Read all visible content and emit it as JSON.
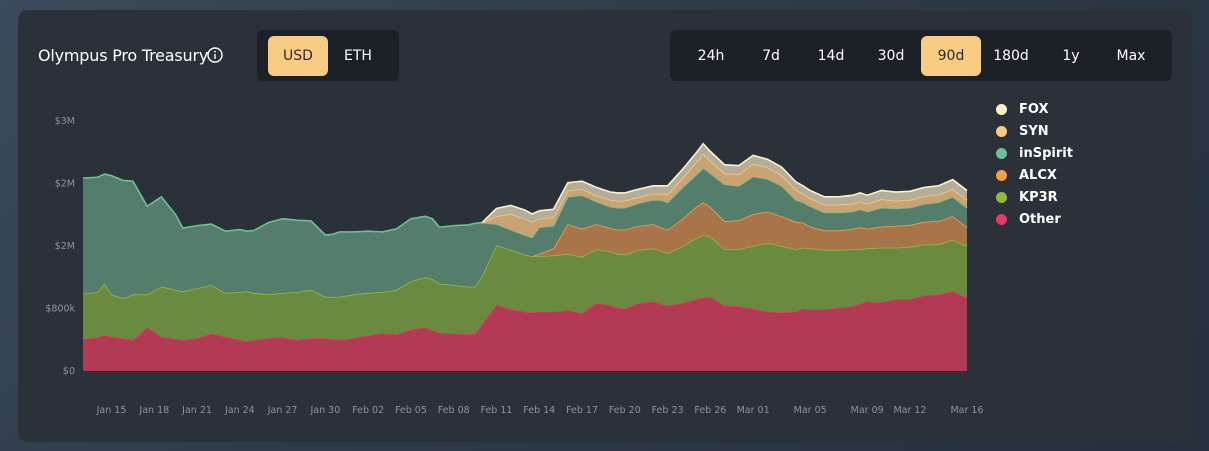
{
  "header": {
    "title": "Olympus Pro Treasury",
    "currency_options": [
      "USD",
      "ETH"
    ],
    "currency_selected": "USD",
    "timeframes": [
      "24h",
      "7d",
      "14d",
      "30d",
      "90d",
      "180d",
      "1y",
      "Max"
    ],
    "timeframe_selected": "90d"
  },
  "colors": {
    "selected_button": "#f8cc82",
    "FOX": "#fdf3c8",
    "SYN": "#f8cc82",
    "inSpirit": "#6fbf97",
    "ALCX": "#f59e48",
    "KP3R": "#8fbc3f",
    "Other": "#e5395f"
  },
  "chart_data": {
    "type": "area",
    "stacked": true,
    "y_tick_labels": [
      "$0",
      "$800k",
      "$2M",
      "$2M",
      "$3M"
    ],
    "y_tick_values": [
      0,
      800000,
      1600000,
      2400000,
      3200000
    ],
    "ylim": [
      0,
      3200000
    ],
    "x_tick_labels": [
      "Jan 15",
      "Jan 18",
      "Jan 21",
      "Jan 24",
      "Jan 27",
      "Jan 30",
      "Feb 02",
      "Feb 05",
      "Feb 08",
      "Feb 11",
      "Feb 14",
      "Feb 17",
      "Feb 20",
      "Feb 23",
      "Feb 26",
      "Mar 01",
      "Mar 05",
      "Mar 09",
      "Mar 12",
      "Mar 16"
    ],
    "x_tick_days": [
      2,
      5,
      8,
      11,
      14,
      17,
      20,
      23,
      26,
      29,
      32,
      35,
      38,
      41,
      44,
      47,
      51,
      55,
      58,
      62
    ],
    "x_days": [
      0,
      1,
      1.5,
      2,
      2.8,
      3.5,
      4.5,
      5.5,
      6.5,
      7,
      8,
      9,
      10,
      11,
      11.5,
      12,
      13,
      14,
      15,
      16,
      17,
      17.5,
      18,
      19,
      20,
      21,
      22,
      23,
      24,
      24.5,
      25,
      26,
      27,
      27.5,
      28,
      29,
      30,
      31,
      31.5,
      32,
      33,
      34,
      35,
      36,
      37,
      37.5,
      38,
      39,
      40,
      40.5,
      41,
      42,
      43,
      43.5,
      44,
      45,
      46,
      47,
      48,
      49,
      50,
      50.5,
      51,
      52,
      53,
      54,
      54.5,
      55,
      56,
      57,
      58,
      59,
      60,
      61,
      62
    ],
    "grid": false,
    "legend_position": "right",
    "series": [
      {
        "name": "Other",
        "values": [
          410000,
          430000,
          460000,
          440000,
          420000,
          400000,
          560000,
          440000,
          410000,
          400000,
          420000,
          480000,
          440000,
          400000,
          380000,
          400000,
          420000,
          430000,
          400000,
          420000,
          420000,
          410000,
          400000,
          420000,
          460000,
          480000,
          470000,
          530000,
          560000,
          520000,
          490000,
          480000,
          470000,
          480000,
          600000,
          850000,
          790000,
          760000,
          750000,
          760000,
          760000,
          780000,
          740000,
          870000,
          840000,
          810000,
          800000,
          870000,
          890000,
          860000,
          840000,
          870000,
          920000,
          940000,
          950000,
          840000,
          830000,
          800000,
          760000,
          750000,
          760000,
          800000,
          790000,
          790000,
          810000,
          830000,
          860000,
          890000,
          880000,
          920000,
          920000,
          970000,
          980000,
          1020000,
          940000
        ]
      },
      {
        "name": "KP3R",
        "values": [
          580000,
          580000,
          660000,
          540000,
          510000,
          580000,
          420000,
          640000,
          630000,
          620000,
          640000,
          620000,
          560000,
          610000,
          640000,
          600000,
          560000,
          570000,
          610000,
          620000,
          530000,
          540000,
          550000,
          560000,
          540000,
          530000,
          570000,
          620000,
          640000,
          660000,
          630000,
          620000,
          610000,
          600000,
          620000,
          760000,
          760000,
          730000,
          720000,
          710000,
          720000,
          720000,
          720000,
          690000,
          690000,
          690000,
          690000,
          680000,
          680000,
          680000,
          670000,
          720000,
          780000,
          800000,
          770000,
          720000,
          730000,
          800000,
          880000,
          850000,
          800000,
          780000,
          780000,
          760000,
          740000,
          730000,
          700000,
          680000,
          700000,
          660000,
          670000,
          650000,
          640000,
          660000,
          660000
        ]
      },
      {
        "name": "ALCX",
        "values": [
          0,
          0,
          0,
          0,
          0,
          0,
          0,
          0,
          0,
          0,
          0,
          0,
          0,
          0,
          0,
          0,
          0,
          0,
          0,
          0,
          0,
          0,
          0,
          0,
          0,
          0,
          0,
          0,
          0,
          0,
          0,
          0,
          0,
          0,
          0,
          0,
          0,
          0,
          0,
          30000,
          90000,
          380000,
          360000,
          320000,
          300000,
          310000,
          320000,
          310000,
          310000,
          300000,
          300000,
          350000,
          400000,
          420000,
          380000,
          360000,
          370000,
          410000,
          400000,
          380000,
          350000,
          320000,
          280000,
          250000,
          250000,
          260000,
          280000,
          250000,
          270000,
          280000,
          280000,
          290000,
          300000,
          300000,
          240000
        ]
      },
      {
        "name": "inSpirit",
        "values": [
          1480000,
          1470000,
          1400000,
          1520000,
          1510000,
          1450000,
          1130000,
          1150000,
          960000,
          810000,
          800000,
          780000,
          790000,
          800000,
          770000,
          800000,
          920000,
          950000,
          920000,
          880000,
          790000,
          800000,
          830000,
          800000,
          790000,
          770000,
          780000,
          800000,
          780000,
          770000,
          720000,
          760000,
          790000,
          810000,
          680000,
          270000,
          260000,
          250000,
          240000,
          340000,
          290000,
          350000,
          430000,
          290000,
          270000,
          280000,
          280000,
          290000,
          310000,
          350000,
          350000,
          400000,
          410000,
          440000,
          430000,
          470000,
          440000,
          480000,
          420000,
          390000,
          280000,
          260000,
          260000,
          230000,
          230000,
          220000,
          230000,
          220000,
          240000,
          220000,
          220000,
          230000,
          240000,
          250000,
          250000
        ]
      },
      {
        "name": "ALCX",
        "values": [
          0,
          0,
          0,
          0,
          0,
          0,
          0,
          0,
          0,
          0,
          0,
          0,
          0,
          0,
          0,
          0,
          0,
          0,
          0,
          0,
          0,
          0,
          0,
          0,
          0,
          0,
          0,
          0,
          0,
          0,
          0,
          0,
          0,
          0,
          0,
          0,
          0,
          0,
          0,
          0,
          0,
          0,
          0,
          0,
          0,
          0,
          0,
          0,
          0,
          0,
          0,
          0,
          0,
          0,
          0,
          0,
          0,
          0,
          0,
          0,
          0,
          0,
          0,
          0,
          0,
          0,
          0,
          0,
          0,
          0,
          0,
          0,
          0,
          0,
          0
        ]
      },
      {
        "name": "SYN",
        "values": [
          0,
          0,
          0,
          0,
          0,
          0,
          0,
          0,
          0,
          0,
          0,
          0,
          0,
          0,
          0,
          0,
          0,
          0,
          0,
          0,
          0,
          0,
          0,
          0,
          0,
          0,
          0,
          0,
          0,
          0,
          0,
          0,
          0,
          0,
          0,
          100000,
          200000,
          210000,
          200000,
          110000,
          110000,
          80000,
          80000,
          80000,
          90000,
          90000,
          90000,
          80000,
          80000,
          80000,
          100000,
          120000,
          160000,
          180000,
          160000,
          140000,
          150000,
          160000,
          150000,
          140000,
          130000,
          110000,
          100000,
          100000,
          100000,
          100000,
          100000,
          100000,
          110000,
          100000,
          100000,
          100000,
          100000,
          100000,
          100000
        ]
      },
      {
        "name": "FOX",
        "values": [
          0,
          0,
          0,
          0,
          0,
          0,
          0,
          0,
          0,
          0,
          0,
          0,
          0,
          0,
          0,
          0,
          0,
          0,
          0,
          0,
          0,
          0,
          0,
          0,
          0,
          0,
          0,
          0,
          0,
          0,
          0,
          0,
          0,
          0,
          0,
          100000,
          110000,
          110000,
          100000,
          100000,
          100000,
          100000,
          100000,
          100000,
          100000,
          100000,
          100000,
          100000,
          100000,
          100000,
          110000,
          110000,
          120000,
          130000,
          120000,
          110000,
          110000,
          110000,
          100000,
          100000,
          100000,
          100000,
          100000,
          100000,
          100000,
          110000,
          110000,
          110000,
          110000,
          110000,
          110000,
          110000,
          110000,
          120000,
          120000
        ]
      }
    ],
    "legend": [
      "FOX",
      "SYN",
      "inSpirit",
      "ALCX",
      "KP3R",
      "Other"
    ]
  }
}
